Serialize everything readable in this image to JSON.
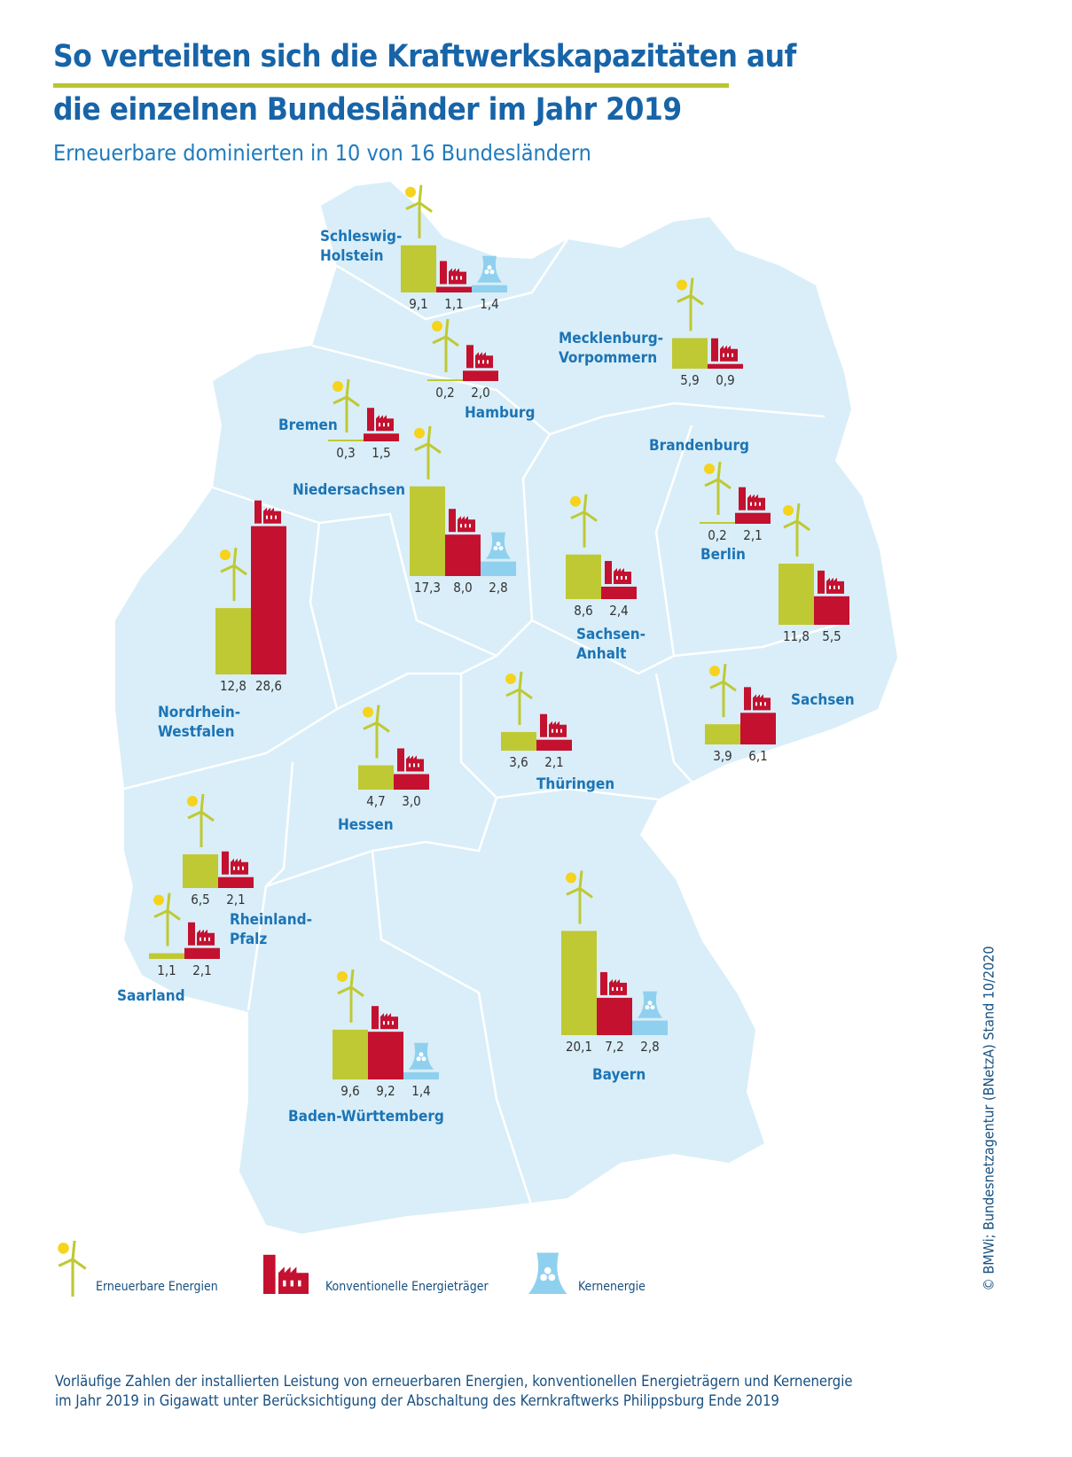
{
  "header": {
    "title_line1": "So verteilten sich die Kraftwerkskapazitäten auf",
    "title_line2": "die einzelnen Bundesländer im Jahr 2019",
    "subtitle": "Erneuerbare dominierten in 10 von 16 Bundesländern"
  },
  "colors": {
    "erneuerbar": "#bfc933",
    "konventionell": "#c3112f",
    "kern": "#8fd0ee",
    "map": "#d9eef8",
    "border": "#ffffff",
    "title": "#1764a8",
    "label": "#1c74b5",
    "rule": "#b9c634"
  },
  "chart_data": {
    "type": "bar",
    "unit": "GW",
    "series_keys": [
      "erneuerbar",
      "konventionell",
      "kern"
    ],
    "states": [
      {
        "id": "sh",
        "label": [
          "Schleswig-",
          "Holstein"
        ],
        "values": [
          9.1,
          1.1,
          1.4
        ],
        "labels": [
          "9,1",
          "1,1",
          "1,4"
        ]
      },
      {
        "id": "mv",
        "label": [
          "Mecklenburg-",
          "Vorpommern"
        ],
        "values": [
          5.9,
          0.9
        ],
        "labels": [
          "5,9",
          "0,9"
        ]
      },
      {
        "id": "hh",
        "label": [
          "Hamburg"
        ],
        "values": [
          0.2,
          2.0
        ],
        "labels": [
          "0,2",
          "2,0"
        ]
      },
      {
        "id": "hb",
        "label": [
          "Bremen"
        ],
        "values": [
          0.3,
          1.5
        ],
        "labels": [
          "0,3",
          "1,5"
        ]
      },
      {
        "id": "ni",
        "label": [
          "Niedersachsen"
        ],
        "values": [
          17.3,
          8.0,
          2.8
        ],
        "labels": [
          "17,3",
          "8,0",
          "2,8"
        ]
      },
      {
        "id": "be",
        "label": [
          "Berlin"
        ],
        "values": [
          0.2,
          2.1
        ],
        "labels": [
          "0,2",
          "2,1"
        ]
      },
      {
        "id": "bb",
        "label": [
          "Brandenburg"
        ],
        "values": [
          11.8,
          5.5
        ],
        "labels": [
          "11,8",
          "5,5"
        ]
      },
      {
        "id": "st",
        "label": [
          "Sachsen-",
          "Anhalt"
        ],
        "values": [
          8.6,
          2.4
        ],
        "labels": [
          "8,6",
          "2,4"
        ]
      },
      {
        "id": "nw",
        "label": [
          "Nordrhein-",
          "Westfalen"
        ],
        "values": [
          12.8,
          28.6
        ],
        "labels": [
          "12,8",
          "28,6"
        ]
      },
      {
        "id": "sn",
        "label": [
          "Sachsen"
        ],
        "values": [
          3.9,
          6.1
        ],
        "labels": [
          "3,9",
          "6,1"
        ]
      },
      {
        "id": "he",
        "label": [
          "Hessen"
        ],
        "values": [
          4.7,
          3.0
        ],
        "labels": [
          "4,7",
          "3,0"
        ]
      },
      {
        "id": "th",
        "label": [
          "Thüringen"
        ],
        "values": [
          3.6,
          2.1
        ],
        "labels": [
          "3,6",
          "2,1"
        ]
      },
      {
        "id": "rp",
        "label": [
          "Rheinland-",
          "Pfalz"
        ],
        "values": [
          6.5,
          2.1
        ],
        "labels": [
          "6,5",
          "2,1"
        ]
      },
      {
        "id": "sl",
        "label": [
          "Saarland"
        ],
        "values": [
          1.1,
          2.1
        ],
        "labels": [
          "1,1",
          "2,1"
        ]
      },
      {
        "id": "bw",
        "label": [
          "Baden-Württemberg"
        ],
        "values": [
          9.6,
          9.2,
          1.4
        ],
        "labels": [
          "9,6",
          "9,2",
          "1,4"
        ]
      },
      {
        "id": "by",
        "label": [
          "Bayern"
        ],
        "values": [
          20.1,
          7.2,
          2.8
        ],
        "labels": [
          "20,1",
          "7,2",
          "2,8"
        ]
      }
    ]
  },
  "legend": {
    "items": [
      {
        "icon": "wind-turbine-sun-icon",
        "label": "Erneuerbare Energien"
      },
      {
        "icon": "factory-icon",
        "label": "Konventionelle Energieträger"
      },
      {
        "icon": "cooling-tower-icon",
        "label": "Kernenergie"
      }
    ]
  },
  "footnote": {
    "line1": "Vorläufige Zahlen der installierten Leistung von erneuerbaren Energien, konventionellen Energieträgern und Kernenergie",
    "line2": "im Jahr 2019 in Gigawatt unter Berücksichtigung der Abschaltung des Kernkraftwerks Philippsburg Ende 2019"
  },
  "credit": "© BMWi; Bundesnetzagentur (BNetzA) Stand 10/2020"
}
